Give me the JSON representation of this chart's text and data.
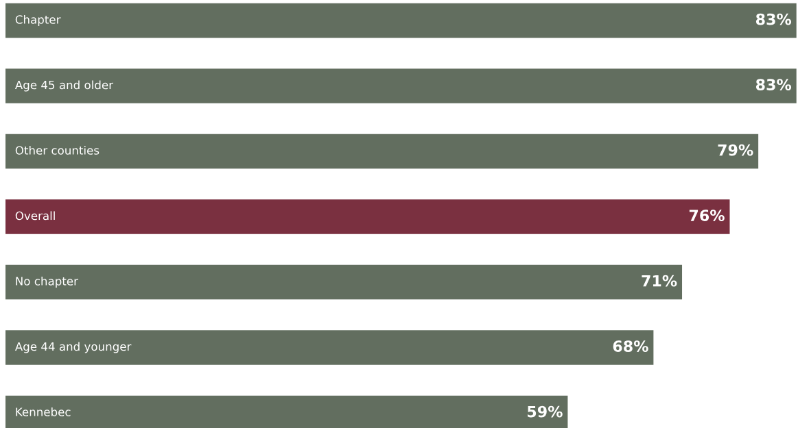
{
  "chart_data": {
    "type": "bar",
    "orientation": "horizontal",
    "categories": [
      "Chapter",
      "Age 45 and older",
      "Other counties",
      "Overall",
      "No chapter",
      "Age 44 and younger",
      "Kennebec"
    ],
    "values": [
      83,
      83,
      79,
      76,
      71,
      68,
      59
    ],
    "colors": [
      "#626e5f",
      "#626e5f",
      "#626e5f",
      "#7a3040",
      "#626e5f",
      "#626e5f",
      "#626e5f"
    ],
    "value_labels": [
      "83%",
      "83%",
      "79%",
      "76%",
      "71%",
      "68%",
      "59%"
    ],
    "tick_labels": false
  }
}
